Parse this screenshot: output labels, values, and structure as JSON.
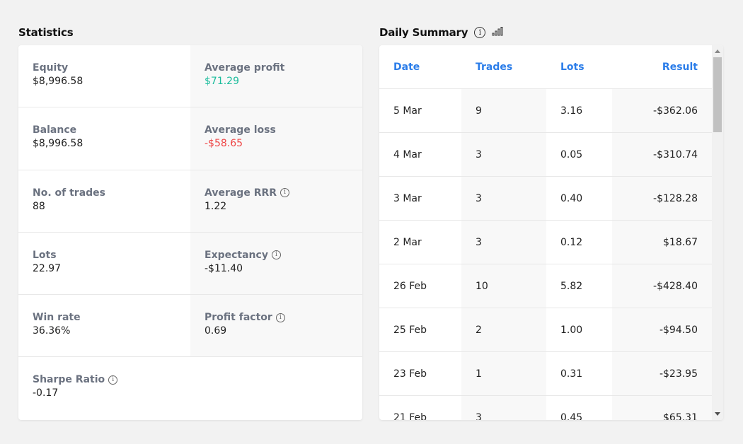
{
  "statistics": {
    "title": "Statistics",
    "rows": [
      {
        "left": {
          "label": "Equity",
          "value": "$8,996.58"
        },
        "right": {
          "label": "Average profit",
          "value": "$71.29",
          "tone": "pos"
        }
      },
      {
        "left": {
          "label": "Balance",
          "value": "$8,996.58"
        },
        "right": {
          "label": "Average loss",
          "value": "-$58.65",
          "tone": "neg"
        }
      },
      {
        "left": {
          "label": "No. of trades",
          "value": "88"
        },
        "right": {
          "label": "Average RRR",
          "value": "1.22",
          "info": true
        }
      },
      {
        "left": {
          "label": "Lots",
          "value": "22.97"
        },
        "right": {
          "label": "Expectancy",
          "value": "-$11.40",
          "info": true
        }
      },
      {
        "left": {
          "label": "Win rate",
          "value": "36.36%"
        },
        "right": {
          "label": "Profit factor",
          "value": "0.69",
          "info": true
        }
      },
      {
        "left": {
          "label": "Sharpe Ratio",
          "value": "-0.17",
          "info": true
        }
      }
    ]
  },
  "daily_summary": {
    "title": "Daily Summary",
    "columns": {
      "date": "Date",
      "trades": "Trades",
      "lots": "Lots",
      "result": "Result"
    },
    "rows": [
      {
        "date": "5 Mar",
        "trades": "9",
        "lots": "3.16",
        "result": "-$362.06",
        "tone": "neg"
      },
      {
        "date": "4 Mar",
        "trades": "3",
        "lots": "0.05",
        "result": "-$310.74",
        "tone": "neg"
      },
      {
        "date": "3 Mar",
        "trades": "3",
        "lots": "0.40",
        "result": "-$128.28",
        "tone": "neg"
      },
      {
        "date": "2 Mar",
        "trades": "3",
        "lots": "0.12",
        "result": "$18.67",
        "tone": "pos"
      },
      {
        "date": "26 Feb",
        "trades": "10",
        "lots": "5.82",
        "result": "-$428.40",
        "tone": "neg"
      },
      {
        "date": "25 Feb",
        "trades": "2",
        "lots": "1.00",
        "result": "-$94.50",
        "tone": "neg"
      },
      {
        "date": "23 Feb",
        "trades": "1",
        "lots": "0.31",
        "result": "-$23.95",
        "tone": "neg"
      },
      {
        "date": "21 Feb",
        "trades": "3",
        "lots": "0.45",
        "result": "$65.31",
        "tone": "pos"
      }
    ]
  },
  "colors": {
    "positive": "#1abc9c",
    "negative": "#ef4444",
    "header_accent": "#2b7de9"
  },
  "icons": {
    "info": "info-icon",
    "chart": "bar-chart-icon"
  }
}
